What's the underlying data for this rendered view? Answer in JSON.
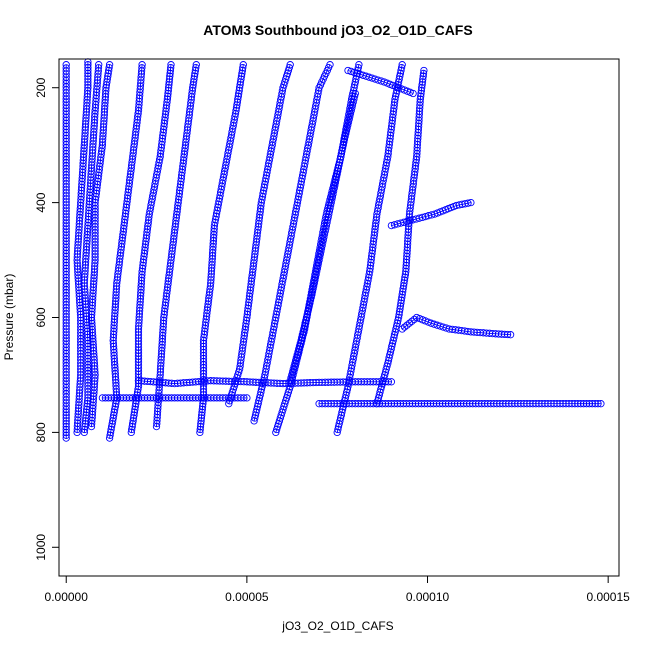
{
  "chart_data": {
    "type": "scatter",
    "title": "ATOM3 Southbound jO3_O2_O1D_CAFS",
    "xlabel": "jO3_O2_O1D_CAFS",
    "ylabel": "Pressure (mbar)",
    "xlim": [
      -2e-06,
      0.000153
    ],
    "ylim": [
      1050,
      150
    ],
    "y_inverted": true,
    "xticks": [
      {
        "value": 0.0,
        "label": "0.00000"
      },
      {
        "value": 5e-05,
        "label": "0.00005"
      },
      {
        "value": 0.0001,
        "label": "0.00010"
      },
      {
        "value": 0.00015,
        "label": "0.00015"
      }
    ],
    "yticks": [
      {
        "value": 200,
        "label": "200"
      },
      {
        "value": 400,
        "label": "400"
      },
      {
        "value": 600,
        "label": "600"
      },
      {
        "value": 800,
        "label": "800"
      },
      {
        "value": 1000,
        "label": "1000"
      }
    ],
    "grid": false,
    "marker": "open-circle",
    "color": "#0000ff",
    "series": [
      {
        "points": [
          [
            0.0,
            810
          ],
          [
            0.0,
            760
          ],
          [
            0.0,
            700
          ],
          [
            0.0,
            620
          ],
          [
            0.0,
            520
          ],
          [
            0.0,
            420
          ],
          [
            0.0,
            320
          ],
          [
            0.0,
            220
          ],
          [
            0.0,
            160
          ]
        ]
      },
      {
        "points": [
          [
            3e-06,
            800
          ],
          [
            4e-06,
            700
          ],
          [
            4e-06,
            600
          ],
          [
            3e-06,
            500
          ],
          [
            4e-06,
            400
          ],
          [
            5e-06,
            300
          ],
          [
            6e-06,
            200
          ],
          [
            6e-06,
            155
          ]
        ]
      },
      {
        "points": [
          [
            5e-06,
            800
          ],
          [
            6e-06,
            740
          ],
          [
            6e-06,
            640
          ],
          [
            5e-06,
            540
          ],
          [
            6e-06,
            440
          ],
          [
            7e-06,
            340
          ],
          [
            8e-06,
            240
          ],
          [
            9e-06,
            160
          ]
        ]
      },
      {
        "points": [
          [
            7e-06,
            790
          ],
          [
            8e-06,
            700
          ],
          [
            7e-06,
            600
          ],
          [
            8e-06,
            500
          ],
          [
            8e-06,
            400
          ],
          [
            1e-05,
            300
          ],
          [
            1.1e-05,
            200
          ],
          [
            1.2e-05,
            160
          ]
        ]
      },
      {
        "points": [
          [
            1.2e-05,
            810
          ],
          [
            1.4e-05,
            740
          ],
          [
            1.3e-05,
            640
          ],
          [
            1.4e-05,
            540
          ],
          [
            1.6e-05,
            440
          ],
          [
            1.8e-05,
            340
          ],
          [
            2e-05,
            240
          ],
          [
            2.1e-05,
            160
          ]
        ]
      },
      {
        "points": [
          [
            1.8e-05,
            800
          ],
          [
            2e-05,
            720
          ],
          [
            2e-05,
            620
          ],
          [
            2.1e-05,
            520
          ],
          [
            2.3e-05,
            420
          ],
          [
            2.6e-05,
            320
          ],
          [
            2.8e-05,
            220
          ],
          [
            2.9e-05,
            160
          ]
        ]
      },
      {
        "points": [
          [
            2.5e-05,
            790
          ],
          [
            2.6e-05,
            700
          ],
          [
            2.7e-05,
            600
          ],
          [
            2.9e-05,
            500
          ],
          [
            3.1e-05,
            400
          ],
          [
            3.3e-05,
            300
          ],
          [
            3.5e-05,
            200
          ],
          [
            3.6e-05,
            160
          ]
        ]
      },
      {
        "points": [
          [
            3.7e-05,
            800
          ],
          [
            3.8e-05,
            740
          ],
          [
            3.8e-05,
            640
          ],
          [
            4e-05,
            540
          ],
          [
            4.1e-05,
            440
          ],
          [
            4.4e-05,
            340
          ],
          [
            4.7e-05,
            240
          ],
          [
            4.9e-05,
            160
          ]
        ]
      },
      {
        "points": [
          [
            4.5e-05,
            750
          ],
          [
            4.8e-05,
            690
          ],
          [
            5e-05,
            600
          ],
          [
            5.2e-05,
            500
          ],
          [
            5.4e-05,
            400
          ],
          [
            5.7e-05,
            300
          ],
          [
            6e-05,
            200
          ],
          [
            6.2e-05,
            160
          ]
        ]
      },
      {
        "points": [
          [
            5.2e-05,
            780
          ],
          [
            5.5e-05,
            700
          ],
          [
            5.8e-05,
            600
          ],
          [
            6.1e-05,
            500
          ],
          [
            6.4e-05,
            400
          ],
          [
            6.7e-05,
            300
          ],
          [
            7e-05,
            200
          ],
          [
            7.3e-05,
            160
          ]
        ]
      },
      {
        "points": [
          [
            5.8e-05,
            800
          ],
          [
            6.2e-05,
            720
          ],
          [
            6.6e-05,
            620
          ],
          [
            6.9e-05,
            520
          ],
          [
            7.2e-05,
            420
          ],
          [
            7.6e-05,
            320
          ],
          [
            7.9e-05,
            220
          ],
          [
            8.1e-05,
            160
          ]
        ]
      },
      {
        "points": [
          [
            7.5e-05,
            800
          ],
          [
            7.8e-05,
            720
          ],
          [
            8.1e-05,
            620
          ],
          [
            8.4e-05,
            520
          ],
          [
            8.6e-05,
            420
          ],
          [
            8.9e-05,
            320
          ],
          [
            9.1e-05,
            220
          ],
          [
            9.3e-05,
            160
          ]
        ]
      },
      {
        "points": [
          [
            8.6e-05,
            750
          ],
          [
            8.9e-05,
            680
          ],
          [
            9.2e-05,
            600
          ],
          [
            9.4e-05,
            520
          ],
          [
            9.5e-05,
            420
          ],
          [
            9.7e-05,
            320
          ],
          [
            9.8e-05,
            220
          ],
          [
            9.9e-05,
            170
          ]
        ]
      },
      {
        "points": [
          [
            6.2e-05,
            710
          ],
          [
            6.5e-05,
            640
          ],
          [
            6.8e-05,
            560
          ],
          [
            7.1e-05,
            470
          ],
          [
            7.4e-05,
            380
          ],
          [
            7.7e-05,
            290
          ],
          [
            8e-05,
            210
          ]
        ]
      },
      {
        "points": [
          [
            9.3e-05,
            620
          ],
          [
            9.7e-05,
            600
          ],
          [
            0.000101,
            610
          ],
          [
            0.000106,
            620
          ],
          [
            0.000112,
            625
          ],
          [
            0.000118,
            628
          ],
          [
            0.000123,
            630
          ]
        ]
      },
      {
        "points": [
          [
            9e-05,
            440
          ],
          [
            9.6e-05,
            430
          ],
          [
            0.000102,
            420
          ],
          [
            0.000108,
            405
          ],
          [
            0.000112,
            400
          ]
        ]
      },
      {
        "points": [
          [
            7e-05,
            750
          ],
          [
            8e-05,
            750
          ],
          [
            9e-05,
            750
          ],
          [
            0.0001,
            750
          ],
          [
            0.00011,
            750
          ],
          [
            0.00012,
            750
          ],
          [
            0.00013,
            750
          ],
          [
            0.00014,
            750
          ],
          [
            0.000148,
            750
          ]
        ]
      },
      {
        "points": [
          [
            2e-05,
            710
          ],
          [
            3e-05,
            715
          ],
          [
            4e-05,
            710
          ],
          [
            5e-05,
            712
          ],
          [
            6e-05,
            715
          ],
          [
            7e-05,
            713
          ],
          [
            8e-05,
            712
          ],
          [
            9e-05,
            712
          ]
        ]
      },
      {
        "points": [
          [
            1e-05,
            740
          ],
          [
            2e-05,
            740
          ],
          [
            3e-05,
            740
          ],
          [
            4e-05,
            740
          ],
          [
            5e-05,
            740
          ]
        ]
      },
      {
        "points": [
          [
            7.8e-05,
            170
          ],
          [
            8.3e-05,
            180
          ],
          [
            8.8e-05,
            190
          ],
          [
            9.2e-05,
            200
          ],
          [
            9.6e-05,
            210
          ]
        ]
      }
    ]
  }
}
